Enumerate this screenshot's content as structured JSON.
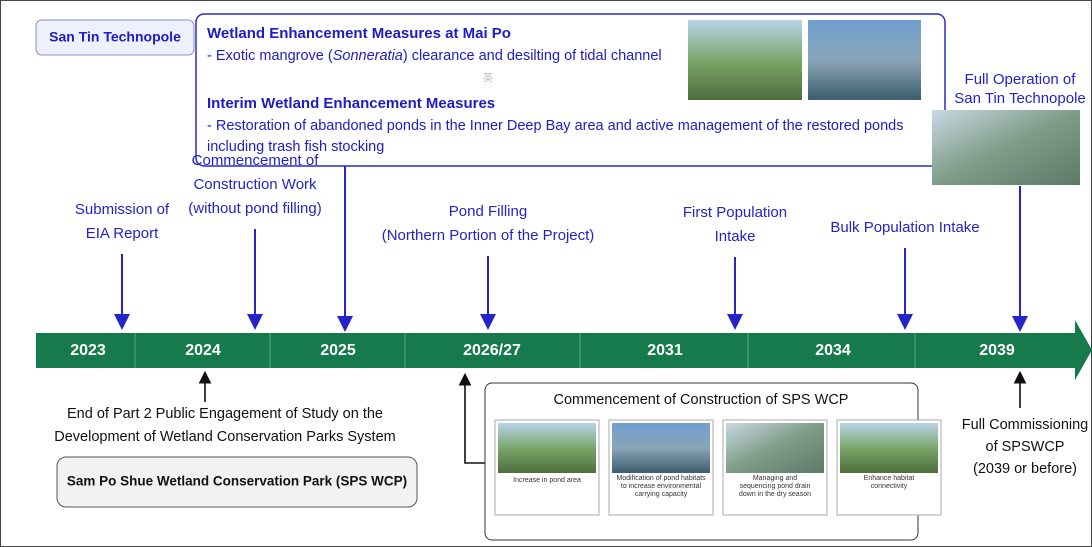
{
  "header": {
    "label": "San Tin Technopole"
  },
  "measures": {
    "heading1": "Wetland Enhancement Measures at Mai Po",
    "line1_parts": [
      "- Exotic mangrove (",
      "Sonneratia",
      ") clearance and desilting of tidal channel"
    ],
    "glyph": "英",
    "heading2": "Interim Wetland Enhancement Measures",
    "line2": [
      "- Restoration of abandoned ponds in the Inner Deep Bay area and active management of the restored ponds",
      "including trash fish stocking"
    ]
  },
  "full_operation": [
    "Full Operation of",
    "San Tin Technopole"
  ],
  "events_above": [
    [
      "Submission of",
      "EIA Report"
    ],
    [
      "Commencement of",
      "Construction Work",
      "(without pond filling)"
    ],
    [
      "Pond Filling",
      "(Northern Portion of the Project)"
    ],
    [
      "First Population",
      "Intake"
    ],
    [
      "Bulk Population Intake"
    ]
  ],
  "years": [
    "2023",
    "2024",
    "2025",
    "2026/27",
    "2031",
    "2034",
    "2039"
  ],
  "engagement": [
    "End of Part 2 Public Engagement of Study on the",
    "Development of Wetland Conservation Parks System"
  ],
  "park": "Sam Po Shue Wetland Conservation Park (SPS WCP)",
  "construction": {
    "title": "Commencement of Construction of SPS WCP",
    "cards": [
      [
        "Increase in pond area"
      ],
      [
        "Modification of pond habitats",
        "to increase environmental",
        "carrying capacity"
      ],
      [
        "Managing and",
        "sequencing pond drain",
        "down in the dry season"
      ],
      [
        "Enhance habitat",
        "connectivity"
      ]
    ]
  },
  "commissioning": [
    "Full Commissioning",
    "of SPSWCP",
    "(2039 or before)"
  ]
}
